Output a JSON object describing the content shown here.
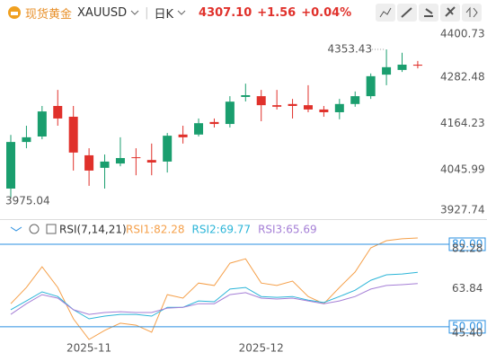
{
  "header": {
    "name": "现货黄金",
    "symbol": "XAUUSD",
    "period": "日K",
    "price": "4307.10",
    "change": "+1.56",
    "change_pct": "+0.04%"
  },
  "chart_data": [
    {
      "type": "candlestick",
      "up_color": "#1a9e6e",
      "down_color": "#e0312b",
      "categories": [
        null,
        null,
        null,
        null,
        null,
        "2025-11",
        null,
        null,
        null,
        null,
        null,
        null,
        null,
        null,
        null,
        null,
        "2025-12",
        null,
        null,
        null,
        null,
        null,
        null,
        null,
        null,
        null,
        null
      ],
      "open": [
        3998,
        4117,
        4131,
        4209,
        4181.5,
        4083,
        4051,
        4062,
        4078,
        4071,
        4067,
        4136,
        4136,
        4168,
        4163,
        4232,
        4234,
        4211,
        4214,
        4211,
        4200,
        4193,
        4214,
        4234,
        4289,
        4301,
        4314.5
      ],
      "high": [
        4135,
        4158.5,
        4209,
        4250,
        4209,
        4101,
        4085,
        4129,
        4101,
        4113,
        4140,
        4158.5,
        4177,
        4177,
        4234,
        4266,
        4250,
        4250,
        4227,
        4262,
        4209,
        4227,
        4246,
        4292,
        4353.43,
        4345,
        4324
      ],
      "low": [
        3975.04,
        4101,
        4124,
        4158.5,
        4044,
        4005,
        3998,
        4055,
        4032,
        4032,
        4039,
        4113,
        4131,
        4154,
        4154,
        4220.5,
        4170,
        4200,
        4177,
        4193,
        4181.5,
        4175,
        4207,
        4227,
        4262,
        4296,
        4305
      ],
      "close": [
        4117,
        4129,
        4195,
        4177,
        4090,
        4044,
        4067,
        4076,
        4076,
        4064.5,
        4133,
        4129,
        4165,
        4163,
        4220,
        4236.5,
        4211,
        4207,
        4209,
        4200,
        4193,
        4214,
        4234,
        4285,
        4308,
        4314.5,
        4312
      ],
      "ylim": [
        3920,
        4420
      ],
      "yticks": [
        4400.73,
        4282.48,
        4164.23,
        4045.99,
        3927.74
      ]
    },
    {
      "type": "line",
      "title": "RSI(7,14,21)",
      "series": [
        {
          "name": "RSI1:82.28",
          "color": "#f5a04a",
          "values": [
            58.4,
            64.3,
            71.8,
            64.3,
            52.9,
            45.4,
            48.7,
            51.3,
            50.6,
            48,
            61.7,
            60.4,
            65.9,
            65,
            73.1,
            74.7,
            65.9,
            65,
            66.6,
            61,
            58.4,
            64.3,
            69.9,
            78.7,
            81.3,
            82,
            82.28
          ]
        },
        {
          "name": "RSI2:69.77",
          "color": "#2bb5d8",
          "values": [
            56.2,
            59.4,
            62.7,
            61,
            56.2,
            52.9,
            53.9,
            54.5,
            54.5,
            53.9,
            57.1,
            57.1,
            59.4,
            59.1,
            63.7,
            64.3,
            61,
            60.7,
            61,
            59.7,
            58.8,
            61,
            63.3,
            66.9,
            68.9,
            69.2,
            69.77
          ]
        },
        {
          "name": "RSI3:65.69",
          "color": "#a57fd6",
          "values": [
            54.5,
            58.4,
            61.7,
            60.4,
            56.2,
            54.5,
            55.2,
            55.5,
            55.2,
            55.2,
            56.8,
            57.1,
            58.4,
            58.4,
            61.7,
            62.4,
            60.4,
            60.1,
            60.4,
            59.4,
            58.4,
            59.4,
            61,
            63.7,
            65,
            65.3,
            65.69
          ]
        }
      ],
      "ylim": [
        45.4,
        82.28
      ],
      "yticks": [
        {
          "value": 45.4,
          "label": "45.40"
        },
        63.84,
        82.28
      ],
      "levels": [
        {
          "value": 80,
          "label": "80.00"
        },
        {
          "value": 50,
          "label": "50.00"
        }
      ],
      "level_color": "#2a8fe0"
    }
  ]
}
